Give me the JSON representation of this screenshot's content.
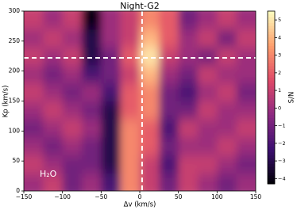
{
  "chart_data": {
    "type": "heatmap",
    "title": "Night-G2",
    "x_label": "Δv (km/s)",
    "y_label": "Kp (km/s)",
    "colorbar_label": "S/N",
    "annotation": "H₂O",
    "x": [
      -137.5,
      -112.5,
      -87.5,
      -62.5,
      -37.5,
      -12.5,
      12.5,
      37.5,
      62.5,
      87.5,
      112.5,
      137.5
    ],
    "y": [
      15,
      45,
      75,
      105,
      135,
      165,
      195,
      225,
      255,
      285
    ],
    "z": [
      [
        0,
        1,
        -1,
        0,
        -2,
        3,
        1,
        -1,
        1,
        0,
        -1,
        0
      ],
      [
        1,
        0,
        -1,
        -1,
        -3,
        3,
        1,
        -2,
        1,
        1,
        0,
        -1
      ],
      [
        0,
        -1,
        0,
        -1,
        -3,
        3,
        2,
        -1,
        0,
        0,
        1,
        0
      ],
      [
        -1,
        0,
        1,
        0,
        -3,
        3,
        2,
        -2,
        1,
        0,
        0,
        1
      ],
      [
        0,
        1,
        0,
        -1,
        -3,
        2,
        3,
        -1,
        -1,
        1,
        0,
        0
      ],
      [
        1,
        0,
        -1,
        0,
        -2,
        2,
        3,
        -1,
        -2,
        0,
        1,
        -1
      ],
      [
        0,
        -1,
        0,
        -2,
        -1,
        1,
        4,
        0,
        -1,
        1,
        0,
        0
      ],
      [
        1,
        0,
        1,
        -3,
        -1,
        2,
        5,
        1,
        0,
        -1,
        1,
        0
      ],
      [
        0,
        1,
        0,
        -3,
        0,
        1,
        4,
        2,
        0,
        1,
        -1,
        1
      ],
      [
        1,
        0,
        1,
        -4,
        0,
        1,
        3,
        2,
        -1,
        0,
        1,
        0
      ]
    ],
    "xlim": [
      -150,
      150
    ],
    "ylim": [
      0,
      300
    ],
    "xticks": [
      {
        "value": -150,
        "label": "−150"
      },
      {
        "value": -100,
        "label": "−100"
      },
      {
        "value": -50,
        "label": "−50"
      },
      0,
      50,
      100,
      150
    ],
    "yticks": [
      0,
      50,
      100,
      150,
      200,
      250,
      300
    ],
    "clim": [
      -4.3,
      5.5
    ],
    "cticks": [
      {
        "value": -4,
        "label": "−4"
      },
      {
        "value": -3,
        "label": "−3"
      },
      {
        "value": -2,
        "label": "−2"
      },
      {
        "value": -1,
        "label": "−1"
      },
      0,
      1,
      2,
      3,
      4,
      5
    ],
    "colormap": [
      "#000004",
      "#3b0f70",
      "#8c2981",
      "#de4968",
      "#fe9f6d",
      "#fcfdbf"
    ],
    "crosshair": {
      "x": 3,
      "y": 222,
      "color": "#ffffff"
    }
  }
}
